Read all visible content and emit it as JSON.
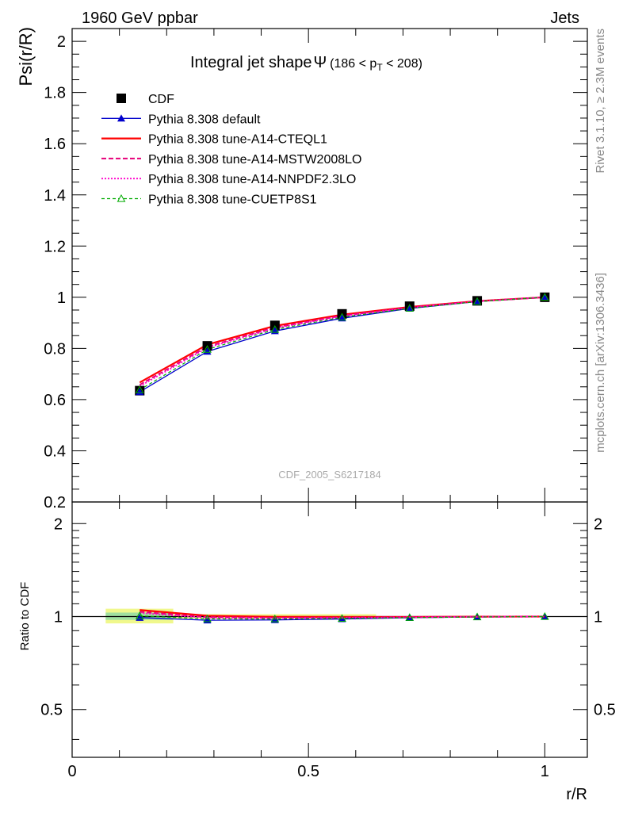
{
  "header": {
    "left": "1960 GeV ppbar",
    "right": "Jets"
  },
  "side_labels": {
    "rivet": "Rivet 3.1.10, ≥ 2.3M events",
    "mcplots": "mcplots.cern.ch [arXiv:1306.3436]"
  },
  "chart_data": [
    {
      "type": "line",
      "title": "Integral jet shape",
      "title_symbol": "Ψ",
      "title_range_prefix": "(186 < p",
      "title_range_sub": "T",
      "title_range_suffix": " < 208)",
      "ylabel": "Psi(r/R)",
      "xlabel": "",
      "watermark": "CDF_2005_S6217184",
      "xlim": [
        0,
        1.09
      ],
      "ylim": [
        0.2,
        2.05
      ],
      "yticks": [
        {
          "v": 0.2,
          "label": "0.2"
        },
        {
          "v": 0.4,
          "label": "0.4"
        },
        {
          "v": 0.6,
          "label": "0.6"
        },
        {
          "v": 0.8,
          "label": "0.8"
        },
        {
          "v": 1.0,
          "label": "1"
        },
        {
          "v": 1.2,
          "label": "1.2"
        },
        {
          "v": 1.4,
          "label": "1.4"
        },
        {
          "v": 1.6,
          "label": "1.6"
        },
        {
          "v": 1.8,
          "label": "1.8"
        },
        {
          "v": 2.0,
          "label": "2"
        }
      ],
      "legend_position": "top-left",
      "x": [
        0.143,
        0.286,
        0.429,
        0.571,
        0.714,
        0.857,
        1.0
      ],
      "data": {
        "name": "CDF",
        "values": [
          0.635,
          0.81,
          0.89,
          0.935,
          0.965,
          0.986,
          1.0
        ],
        "errors": [
          0.015,
          0.01,
          0.008,
          0.006,
          0.004,
          0.003,
          0.0
        ],
        "color": "#000000",
        "marker": "square"
      },
      "series": [
        {
          "name": "Pythia 8.308 default",
          "values": [
            0.63,
            0.788,
            0.868,
            0.918,
            0.956,
            0.983,
            1.0
          ],
          "color": "#0000cc",
          "dash": "",
          "width": 1.3,
          "marker": "triangle-filled"
        },
        {
          "name": "Pythia 8.308 tune-A14-CTEQL1",
          "values": [
            0.667,
            0.815,
            0.888,
            0.932,
            0.962,
            0.985,
            1.0
          ],
          "color": "#ff0000",
          "dash": "",
          "width": 2.2,
          "marker": "none"
        },
        {
          "name": "Pythia 8.308 tune-A14-MSTW2008LO",
          "values": [
            0.658,
            0.807,
            0.882,
            0.928,
            0.96,
            0.984,
            1.0
          ],
          "color": "#e6007a",
          "dash": "6,3",
          "width": 2.0,
          "marker": "none"
        },
        {
          "name": "Pythia 8.308 tune-A14-NNPDF2.3LO",
          "values": [
            0.652,
            0.803,
            0.879,
            0.926,
            0.959,
            0.984,
            1.0
          ],
          "color": "#ff00cc",
          "dash": "2,2",
          "width": 1.8,
          "marker": "none"
        },
        {
          "name": "Pythia 8.308 tune-CUETP8S1",
          "values": [
            0.638,
            0.796,
            0.874,
            0.922,
            0.957,
            0.983,
            1.0
          ],
          "color": "#00aa00",
          "dash": "4,3",
          "width": 1.2,
          "marker": "triangle-open"
        }
      ]
    },
    {
      "type": "line",
      "title": "",
      "ylabel": "Ratio to CDF",
      "xlabel": "r/R",
      "xlim": [
        0,
        1.09
      ],
      "ylim": [
        0.35,
        2.35
      ],
      "log_y": true,
      "yticks": [
        {
          "v": 0.5,
          "label": "0.5"
        },
        {
          "v": 1,
          "label": "1"
        },
        {
          "v": 2,
          "label": "2"
        }
      ],
      "xticks": [
        {
          "v": 0,
          "label": "0"
        },
        {
          "v": 0.5,
          "label": "0.5"
        },
        {
          "v": 1,
          "label": "1"
        }
      ],
      "bands": [
        {
          "x0": 0.071,
          "x1": 0.214,
          "lo": 0.95,
          "hi": 1.06,
          "color": "#f0f88c"
        },
        {
          "x0": 0.071,
          "x1": 0.214,
          "lo": 0.975,
          "hi": 1.03,
          "color": "#9fe0a0"
        },
        {
          "x0": 0.214,
          "x1": 0.643,
          "lo": 0.985,
          "hi": 1.018,
          "color": "#f0f88c"
        }
      ],
      "series": [
        {
          "name": "Pythia 8.308 default",
          "values": [
            0.992,
            0.973,
            0.975,
            0.982,
            0.991,
            0.997,
            1.0
          ]
        },
        {
          "name": "Pythia 8.308 tune-A14-CTEQL1",
          "values": [
            1.05,
            1.006,
            0.998,
            0.997,
            0.997,
            0.999,
            1.0
          ]
        },
        {
          "name": "Pythia 8.308 tune-A14-MSTW2008LO",
          "values": [
            1.036,
            0.996,
            0.991,
            0.993,
            0.995,
            0.998,
            1.0
          ]
        },
        {
          "name": "Pythia 8.308 tune-A14-NNPDF2.3LO",
          "values": [
            1.027,
            0.991,
            0.988,
            0.99,
            0.994,
            0.998,
            1.0
          ]
        },
        {
          "name": "Pythia 8.308 tune-CUETP8S1",
          "values": [
            1.005,
            0.983,
            0.982,
            0.986,
            0.992,
            0.997,
            1.0
          ]
        }
      ]
    }
  ]
}
